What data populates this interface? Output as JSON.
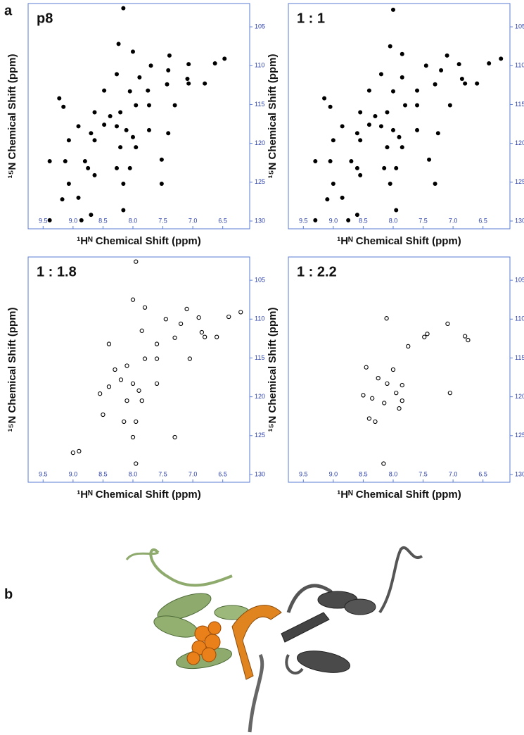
{
  "figure": {
    "panel_labels": [
      "a",
      "b"
    ]
  },
  "chart_data": [
    {
      "type": "scatter",
      "title": "p8",
      "x_label": "¹Hᴺ Chemical Shift (ppm)",
      "y_label": "¹⁵N Chemical Shift (ppm)",
      "marker_style": "filled",
      "color": "#000000",
      "xlim": [
        9.75,
        6.05
      ],
      "ylim": [
        102,
        131
      ],
      "xticks": [
        9.5,
        {
          "value": 9,
          "label": "9.0"
        },
        8.5,
        {
          "value": 8,
          "label": "8.0"
        },
        7.5,
        {
          "value": 7,
          "label": "7.0"
        },
        6.5
      ],
      "yticks": [
        105,
        110,
        115,
        120,
        125,
        130
      ],
      "series": [
        {
          "name": "p8",
          "color": "#000000",
          "x": [
            8.16,
            8.24,
            8.0,
            7.39,
            7.7,
            7.07,
            6.47,
            6.63,
            8.27,
            7.41,
            7.09,
            7.07,
            6.8,
            7.89,
            8.48,
            8.05,
            7.75,
            7.43,
            7.73,
            7.3,
            7.95,
            9.23,
            9.16,
            8.64,
            8.38,
            8.21,
            8.27,
            8.48,
            8.91,
            8.11,
            7.73,
            7.41,
            8.0,
            8.21,
            7.95,
            8.7,
            8.64,
            9.07,
            9.39,
            9.13,
            8.8,
            8.75,
            8.64,
            8.27,
            8.05,
            7.52,
            8.16,
            7.52,
            9.07,
            9.18,
            8.91,
            8.7,
            8.16,
            9.39,
            8.86
          ],
          "values": [
            102.6,
            107.2,
            108.2,
            108.7,
            110.0,
            109.8,
            109.1,
            109.7,
            111.1,
            110.6,
            111.7,
            112.3,
            112.3,
            111.5,
            113.2,
            113.3,
            113.2,
            112.4,
            115.1,
            115.1,
            115.1,
            114.2,
            115.3,
            116.0,
            116.5,
            116.0,
            117.8,
            117.6,
            117.8,
            118.3,
            118.3,
            118.7,
            119.2,
            120.5,
            120.5,
            118.7,
            119.6,
            119.6,
            122.3,
            122.3,
            122.3,
            123.2,
            124.1,
            123.2,
            123.2,
            122.1,
            125.2,
            125.2,
            125.2,
            127.2,
            127.0,
            129.2,
            128.6,
            129.9,
            129.9
          ]
        }
      ]
    },
    {
      "type": "scatter",
      "title": "1 : 1",
      "x_label": "¹Hᴺ Chemical Shift (ppm)",
      "y_label": "¹⁵N Chemical Shift (ppm)",
      "marker_style": "filled",
      "color": "#000000",
      "xlim": [
        9.75,
        6.05
      ],
      "ylim": [
        102,
        131
      ],
      "xticks": [
        9.5,
        {
          "value": 9,
          "label": "9.0"
        },
        8.5,
        {
          "value": 8,
          "label": "8.0"
        },
        7.5,
        {
          "value": 7,
          "label": "7.0"
        },
        6.5
      ],
      "yticks": [
        105,
        110,
        115,
        120,
        125,
        130
      ],
      "series": [
        {
          "name": "1 : 1",
          "color": "#000000",
          "x": [
            8.0,
            8.05,
            7.85,
            7.1,
            7.45,
            6.9,
            6.2,
            6.4,
            8.2,
            7.2,
            6.85,
            6.8,
            6.6,
            7.85,
            8.4,
            8.0,
            7.6,
            7.3,
            7.6,
            7.05,
            7.8,
            9.15,
            9.05,
            8.55,
            8.3,
            8.1,
            8.2,
            8.4,
            8.85,
            8.0,
            7.6,
            7.25,
            7.9,
            8.1,
            7.85,
            8.6,
            8.55,
            9.0,
            9.3,
            9.05,
            8.7,
            8.6,
            8.55,
            8.15,
            7.95,
            7.4,
            8.05,
            7.3,
            9.0,
            9.1,
            8.85,
            8.6,
            7.95,
            9.3,
            8.75
          ],
          "values": [
            102.8,
            107.5,
            108.5,
            108.7,
            110.0,
            109.8,
            109.1,
            109.7,
            111.1,
            110.6,
            111.7,
            112.3,
            112.3,
            111.5,
            113.2,
            113.3,
            113.2,
            112.4,
            115.1,
            115.1,
            115.1,
            114.2,
            115.3,
            116.0,
            116.5,
            116.0,
            117.8,
            117.6,
            117.8,
            118.3,
            118.3,
            118.7,
            119.2,
            120.5,
            120.5,
            118.7,
            119.6,
            119.6,
            122.3,
            122.3,
            122.3,
            123.2,
            124.1,
            123.2,
            123.2,
            122.1,
            125.2,
            125.2,
            125.2,
            127.2,
            127.0,
            129.2,
            128.6,
            129.9,
            129.9
          ]
        }
      ]
    },
    {
      "type": "scatter",
      "title": "1 : 1.8",
      "x_label": "¹Hᴺ Chemical Shift (ppm)",
      "y_label": "¹⁵N Chemical Shift (ppm)",
      "marker_style": "open",
      "color": "#000000",
      "xlim": [
        9.75,
        6.05
      ],
      "ylim": [
        102,
        131
      ],
      "xticks": [
        9.5,
        {
          "value": 9,
          "label": "9.0"
        },
        8.5,
        {
          "value": 8,
          "label": "8.0"
        },
        7.5,
        {
          "value": 7,
          "label": "7.0"
        },
        6.5
      ],
      "yticks": [
        105,
        110,
        115,
        120,
        125,
        130
      ],
      "series": [
        {
          "name": "1 : 1.8",
          "color": "#000000",
          "x": [
            7.95,
            8.0,
            7.8,
            7.1,
            7.45,
            6.9,
            6.2,
            6.4,
            7.2,
            6.85,
            6.8,
            6.6,
            7.85,
            8.4,
            7.6,
            7.3,
            7.6,
            7.05,
            7.8,
            8.3,
            8.1,
            8.2,
            8.4,
            8.0,
            7.6,
            7.9,
            8.1,
            7.85,
            8.55,
            8.5,
            8.15,
            7.95,
            7.3,
            8.0,
            9.0,
            8.9,
            7.95
          ],
          "values": [
            102.6,
            107.5,
            108.5,
            108.7,
            110.0,
            109.8,
            109.1,
            109.7,
            110.6,
            111.7,
            112.3,
            112.3,
            111.5,
            113.2,
            113.2,
            112.4,
            115.1,
            115.1,
            115.1,
            116.5,
            116.0,
            117.8,
            118.7,
            118.3,
            118.3,
            119.2,
            120.5,
            120.5,
            119.6,
            122.3,
            123.2,
            123.2,
            125.2,
            125.2,
            127.2,
            127.0,
            128.6
          ]
        }
      ]
    },
    {
      "type": "scatter",
      "title": "1 : 2.2",
      "x_label": "¹Hᴺ Chemical Shift (ppm)",
      "y_label": "¹⁵N Chemical Shift (ppm)",
      "marker_style": "open",
      "color": "#000000",
      "xlim": [
        9.75,
        6.05
      ],
      "ylim": [
        102,
        131
      ],
      "xticks": [
        9.5,
        {
          "value": 9,
          "label": "9.0"
        },
        8.5,
        {
          "value": 8,
          "label": "8.0"
        },
        7.5,
        {
          "value": 7,
          "label": "7.0"
        },
        6.5
      ],
      "yticks": [
        105,
        110,
        115,
        120,
        125,
        130
      ],
      "series": [
        {
          "name": "1 : 2.2",
          "color": "#000000",
          "x": [
            8.11,
            7.48,
            7.43,
            7.09,
            6.8,
            6.75,
            7.75,
            8.45,
            8.0,
            8.25,
            8.1,
            7.85,
            7.95,
            8.5,
            8.35,
            8.15,
            7.85,
            7.9,
            8.4,
            8.3,
            7.05,
            8.16
          ],
          "values": [
            109.9,
            112.3,
            111.9,
            110.6,
            112.2,
            112.7,
            113.5,
            116.2,
            116.5,
            117.6,
            118.3,
            118.5,
            119.5,
            119.8,
            120.2,
            120.8,
            120.5,
            121.5,
            122.8,
            123.2,
            119.5,
            128.6
          ]
        }
      ]
    }
  ]
}
